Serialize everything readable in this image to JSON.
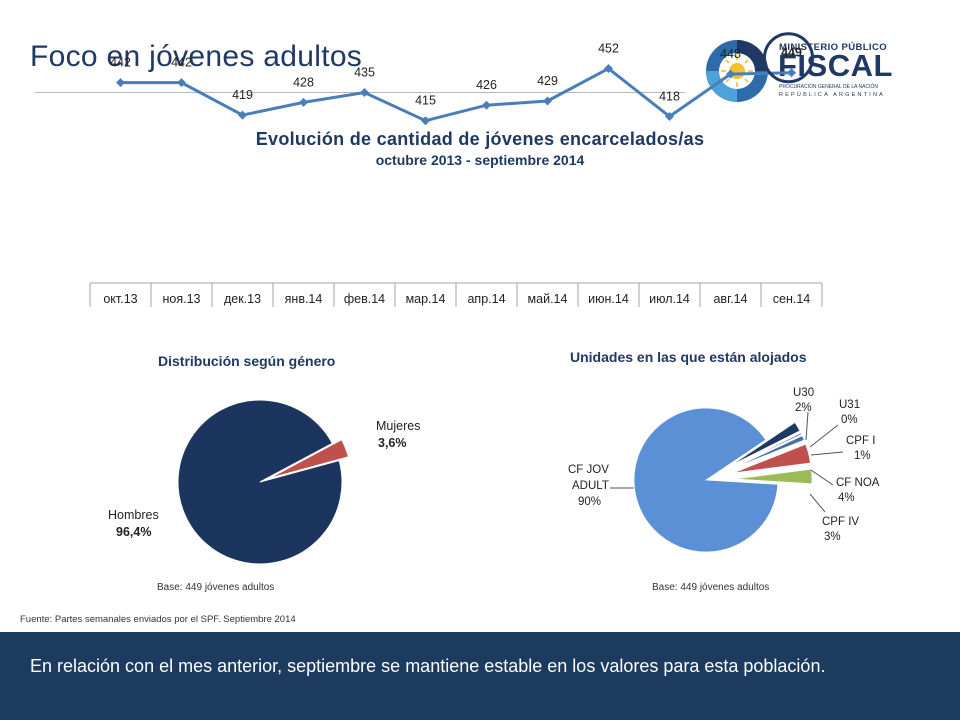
{
  "page": {
    "title": "Foco en jóvenes adultos",
    "logo": {
      "line1": "MINISTERIO PÚBLICO",
      "line2": "FISCAL",
      "line3": "PROCURACIÓN GENERAL DE LA NACIÓN",
      "line4": "REPÚBLICA ARGENTINA"
    },
    "source": "Fuente: Partes semanales enviados por el SPF. Septiembre 2014",
    "banner_text": "En relación con el mes anterior, septiembre se mantiene estable en los valores para esta población.",
    "colors": {
      "navy": "#1f3864",
      "line": "#4a7ebb",
      "banner": "#1d3a5f"
    }
  },
  "chart_data": [
    {
      "type": "line",
      "title": "Evolución de cantidad de jóvenes encarcelados/as",
      "subtitle": "octubre 2013 - septiembre 2014",
      "categories": [
        "окт.13",
        "ноя.13",
        "дек.13",
        "янв.14",
        "фев.14",
        "мар.14",
        "апр.14",
        "май.14",
        "июн.14",
        "июл.14",
        "авг.14",
        "сен.14"
      ],
      "values": [
        442,
        442,
        419,
        428,
        435,
        415,
        426,
        429,
        452,
        418,
        448,
        449
      ],
      "highlight_index": 11,
      "ylim": [
        300,
        480
      ],
      "grid": false
    },
    {
      "type": "pie",
      "title": "Distribución según género",
      "note": "Base: 449 jóvenes adultos",
      "slices": [
        {
          "name": "Hombres",
          "label": "96,4%",
          "value": 96.4,
          "color": "#1c355e"
        },
        {
          "name": "Mujeres",
          "label": "3,6%",
          "value": 3.6,
          "color": "#c0504d"
        }
      ]
    },
    {
      "type": "pie",
      "title": "Unidades en las que están alojados",
      "note": "Base: 449 jóvenes adultos",
      "slices": [
        {
          "name": "U30",
          "label": "2%",
          "value": 2,
          "color": "#1f3864"
        },
        {
          "name": "U31",
          "label": "0%",
          "value": 0.4,
          "color": "#6a88b0"
        },
        {
          "name": "CPF I",
          "label": "1%",
          "value": 1,
          "color": "#4a6fa5"
        },
        {
          "name": "CF NOA",
          "label": "4%",
          "value": 4,
          "color": "#c0504d"
        },
        {
          "name": "CPF IV",
          "label": "3%",
          "value": 3,
          "color": "#9bbb59"
        },
        {
          "name": "CF JOV ADULT",
          "label": "90%",
          "value": 90,
          "color": "#5b8fd6"
        }
      ]
    }
  ]
}
